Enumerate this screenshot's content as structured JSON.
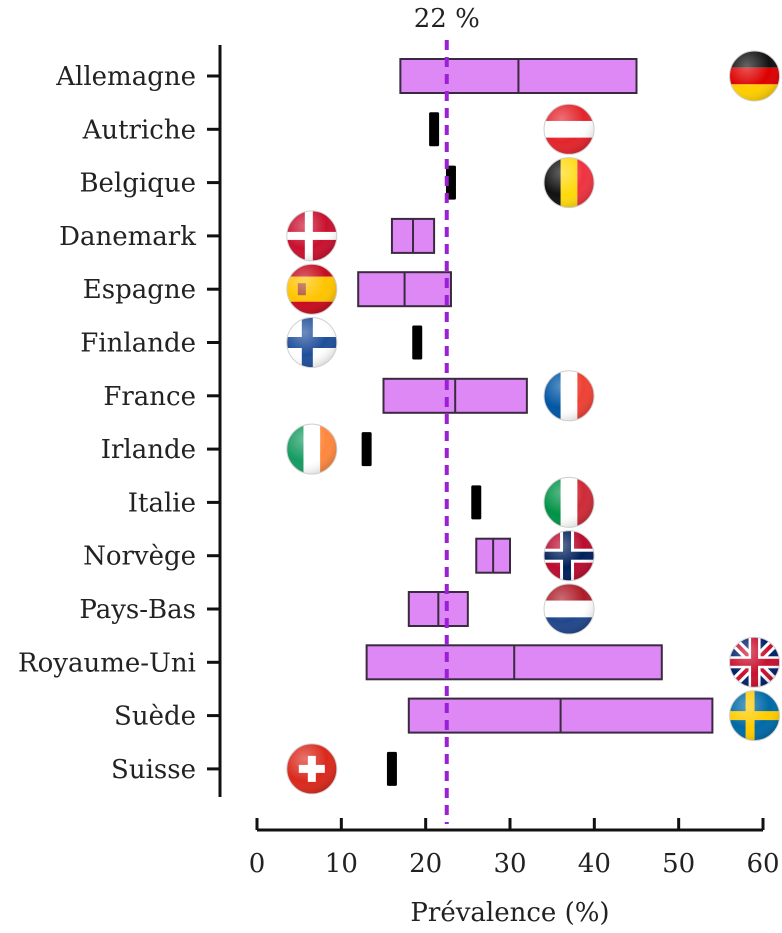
{
  "chart_data": {
    "type": "box",
    "xlabel": "Prévalence (%)",
    "xlim": [
      0,
      60
    ],
    "xticks": [
      0,
      10,
      20,
      30,
      40,
      50,
      60
    ],
    "reference_line": {
      "value": 22.5,
      "label": "22 %",
      "color": "#9b1fd6",
      "style": "dashed"
    },
    "box_color": "#dd88f5",
    "point_color": "#000000",
    "grid": false,
    "categories": [
      "Allemagne",
      "Autriche",
      "Belgique",
      "Danemark",
      "Espagne",
      "Finlande",
      "France",
      "Irlande",
      "Italie",
      "Norvège",
      "Pays-Bas",
      "Royaume-Uni",
      "Suède",
      "Suisse"
    ],
    "series": [
      {
        "category": "Allemagne",
        "kind": "range",
        "min": 17,
        "mid": 31,
        "max": 45,
        "flag": "germany-flag-icon",
        "flag_x": 59
      },
      {
        "category": "Autriche",
        "kind": "point",
        "value": 21,
        "flag": "austria-flag-icon",
        "flag_x": 37
      },
      {
        "category": "Belgique",
        "kind": "point",
        "value": 23,
        "flag": "belgium-flag-icon",
        "flag_x": 37
      },
      {
        "category": "Danemark",
        "kind": "range",
        "min": 16,
        "mid": 18.5,
        "max": 21,
        "flag": "denmark-flag-icon",
        "flag_x": 6.5
      },
      {
        "category": "Espagne",
        "kind": "range",
        "min": 12,
        "mid": 17.5,
        "max": 23,
        "flag": "spain-flag-icon",
        "flag_x": 6.5
      },
      {
        "category": "Finlande",
        "kind": "point",
        "value": 19,
        "flag": "finland-flag-icon",
        "flag_x": 6.5
      },
      {
        "category": "France",
        "kind": "range",
        "min": 15,
        "mid": 23.5,
        "max": 32,
        "flag": "france-flag-icon",
        "flag_x": 37
      },
      {
        "category": "Irlande",
        "kind": "point",
        "value": 13,
        "flag": "ireland-flag-icon",
        "flag_x": 6.5
      },
      {
        "category": "Italie",
        "kind": "point",
        "value": 26,
        "flag": "italy-flag-icon",
        "flag_x": 37
      },
      {
        "category": "Norvège",
        "kind": "range",
        "min": 26,
        "mid": 28,
        "max": 30,
        "flag": "norway-flag-icon",
        "flag_x": 37
      },
      {
        "category": "Pays-Bas",
        "kind": "range",
        "min": 18,
        "mid": 21.5,
        "max": 25,
        "flag": "netherlands-flag-icon",
        "flag_x": 37
      },
      {
        "category": "Royaume-Uni",
        "kind": "range",
        "min": 13,
        "mid": 30.5,
        "max": 48,
        "flag": "uk-flag-icon",
        "flag_x": 59
      },
      {
        "category": "Suède",
        "kind": "range",
        "min": 18,
        "mid": 36,
        "max": 54,
        "flag": "sweden-flag-icon",
        "flag_x": 59
      },
      {
        "category": "Suisse",
        "kind": "point",
        "value": 16,
        "flag": "switzerland-flag-icon",
        "flag_x": 6.5
      }
    ]
  }
}
